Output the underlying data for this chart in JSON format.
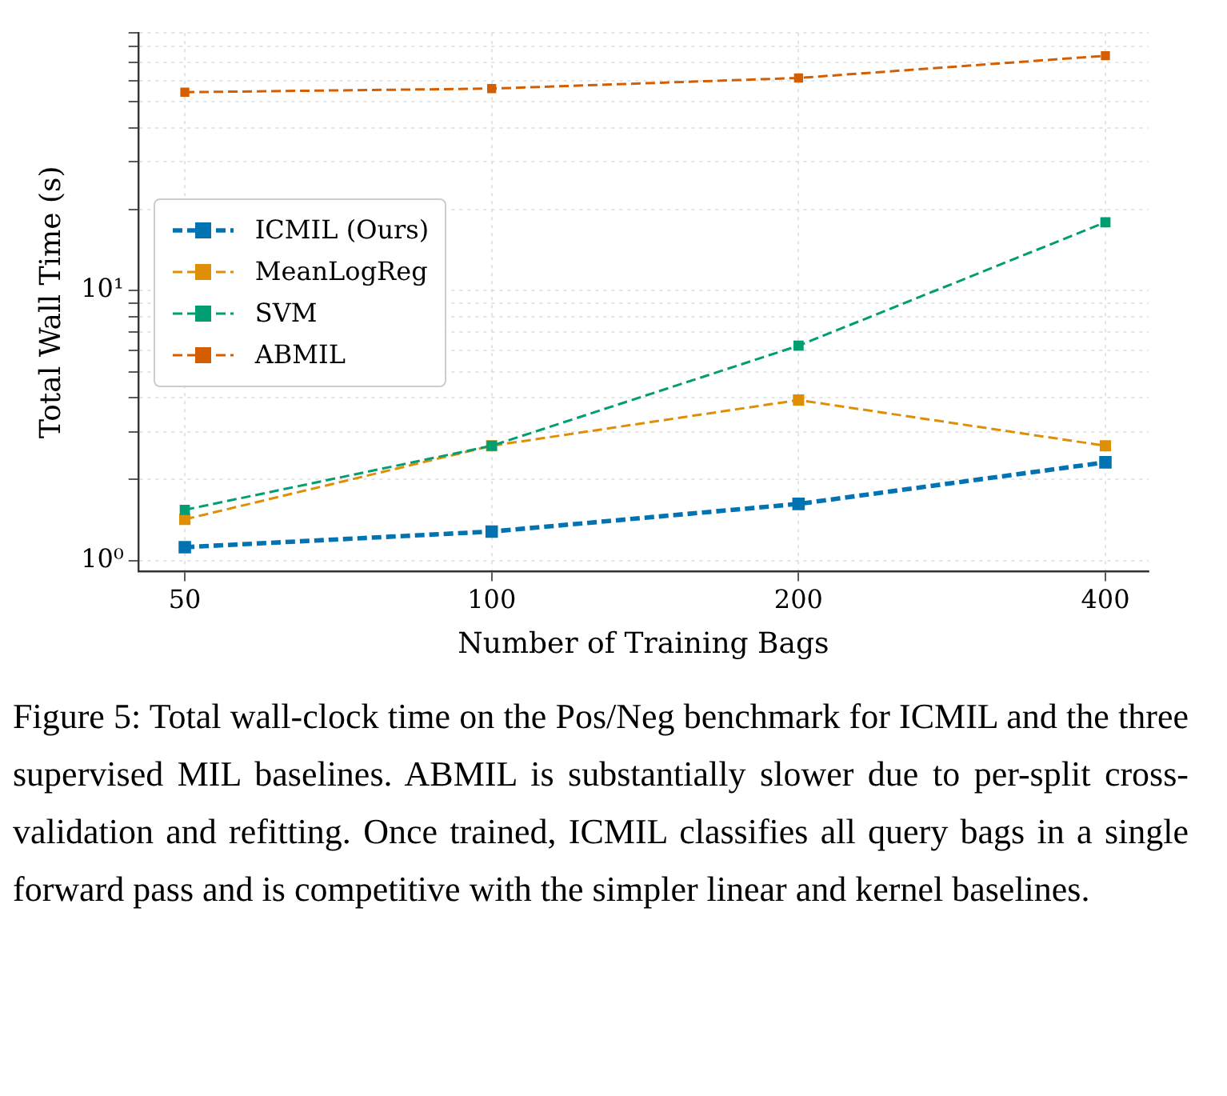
{
  "chart_data": {
    "type": "line",
    "xlabel": "Number of Training Bags",
    "ylabel": "Total Wall Time (s)",
    "x": [
      50,
      100,
      200,
      400
    ],
    "series": [
      {
        "name": "ICMIL (Ours)",
        "color": "#0173b2",
        "values": [
          1.12,
          1.28,
          1.62,
          2.31
        ],
        "line_style": "dashed"
      },
      {
        "name": "MeanLogReg",
        "color": "#de8f05",
        "values": [
          1.42,
          2.66,
          3.93,
          2.66
        ],
        "line_style": "dashed"
      },
      {
        "name": "SVM",
        "color": "#029e73",
        "values": [
          1.54,
          2.66,
          6.25,
          17.9
        ],
        "line_style": "dashed"
      },
      {
        "name": "ABMIL",
        "color": "#d55e00",
        "values": [
          54.3,
          56,
          61.3,
          74.1
        ],
        "line_style": "dashed"
      }
    ],
    "log": "xy",
    "xlim": [
      45,
      441
    ],
    "xticks": [
      50,
      100,
      200,
      400
    ],
    "ylim": [
      0.91,
      90
    ],
    "yticks": [
      {
        "value": 1,
        "label": "10⁰"
      },
      {
        "value": 2,
        "label": null
      },
      {
        "value": 3,
        "label": null
      },
      {
        "value": 4,
        "label": null
      },
      {
        "value": 5,
        "label": null
      },
      {
        "value": 6,
        "label": null
      },
      {
        "value": 7,
        "label": null
      },
      {
        "value": 8,
        "label": null
      },
      {
        "value": 9,
        "label": null
      },
      {
        "value": 10,
        "label": "10¹"
      },
      {
        "value": 20,
        "label": null
      },
      {
        "value": 30,
        "label": null
      },
      {
        "value": 40,
        "label": null
      },
      {
        "value": 50,
        "label": null
      },
      {
        "value": 60,
        "label": null
      },
      {
        "value": 70,
        "label": null
      },
      {
        "value": 80,
        "label": null
      },
      {
        "value": 90,
        "label": null
      }
    ],
    "grid": true,
    "legend": "left",
    "marker": "square",
    "annotations": [
      "Figure 5: Total wall-clock time on the Pos/Neg benchmark for ICMIL and the three supervised MIL baselines. ABMIL is substantially slower due to per-split cross-validation and refitting. Once trained, ICMIL classifies all query bags in a single forward pass and is competitive with the simpler linear and kernel baselines."
    ]
  }
}
